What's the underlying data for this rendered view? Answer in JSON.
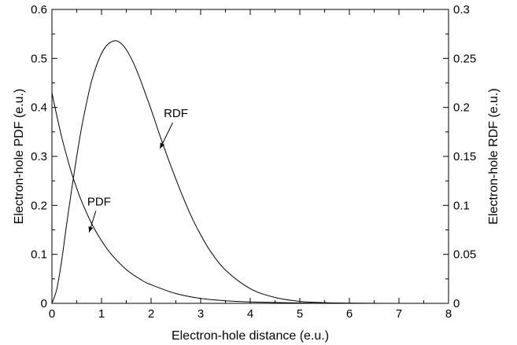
{
  "chart_data": {
    "type": "line",
    "title": "",
    "xlabel": "Electron-hole distance (e.u.)",
    "ylabel_left": "Electron-hole PDF (e.u.)",
    "ylabel_right": "Electron-hole RDF (e.u.)",
    "xlim": [
      0,
      8
    ],
    "ylim_left": [
      0,
      0.6
    ],
    "ylim_right": [
      0,
      0.3
    ],
    "grid": false,
    "legend": "none",
    "x_ticks": [
      "0",
      "1",
      "2",
      "3",
      "4",
      "5",
      "6",
      "7",
      "8"
    ],
    "y_left_ticks": [
      "0",
      "0.1",
      "0.2",
      "0.3",
      "0.4",
      "0.5",
      "0.6"
    ],
    "y_right_ticks": [
      "0",
      "0.05",
      "0.1",
      "0.15",
      "0.2",
      "0.25",
      "0.3"
    ],
    "series": [
      {
        "name": "PDF",
        "axis": "left",
        "x": [
          0,
          0.1,
          0.2,
          0.3,
          0.4,
          0.5,
          0.6,
          0.8,
          1.0,
          1.2,
          1.5,
          1.8,
          2.0,
          2.5,
          3.0,
          3.5,
          4.0,
          5.0,
          6.0,
          8.0
        ],
        "y": [
          0.43,
          0.382,
          0.338,
          0.3,
          0.265,
          0.235,
          0.208,
          0.163,
          0.128,
          0.1,
          0.069,
          0.048,
          0.038,
          0.02,
          0.01,
          0.0053,
          0.0028,
          0.0008,
          0.0002,
          0.0
        ]
      },
      {
        "name": "RDF",
        "axis": "right",
        "x": [
          0,
          0.1,
          0.2,
          0.3,
          0.4,
          0.5,
          0.6,
          0.7,
          0.8,
          0.9,
          1.0,
          1.1,
          1.2,
          1.3,
          1.4,
          1.5,
          1.6,
          1.7,
          1.8,
          1.9,
          2.0,
          2.2,
          2.4,
          2.6,
          2.8,
          3.0,
          3.2,
          3.5,
          4.0,
          4.5,
          5.0,
          5.5,
          6.0,
          7.0,
          8.0
        ],
        "y": [
          0.0,
          0.015,
          0.045,
          0.082,
          0.117,
          0.15,
          0.18,
          0.205,
          0.227,
          0.243,
          0.255,
          0.263,
          0.267,
          0.268,
          0.265,
          0.259,
          0.25,
          0.239,
          0.226,
          0.212,
          0.198,
          0.168,
          0.14,
          0.114,
          0.09,
          0.07,
          0.053,
          0.034,
          0.015,
          0.006,
          0.002,
          0.0007,
          0.0002,
          0.0,
          0.0
        ]
      }
    ],
    "annotations": [
      {
        "text": "RDF",
        "x": 2.5,
        "y_right": 0.19,
        "arrow_to_x": 2.18,
        "arrow_to_y_right": 0.158
      },
      {
        "text": "PDF",
        "x": 0.95,
        "y_left": 0.2,
        "arrow_to_x": 0.75,
        "arrow_to_y_left": 0.145
      }
    ]
  }
}
